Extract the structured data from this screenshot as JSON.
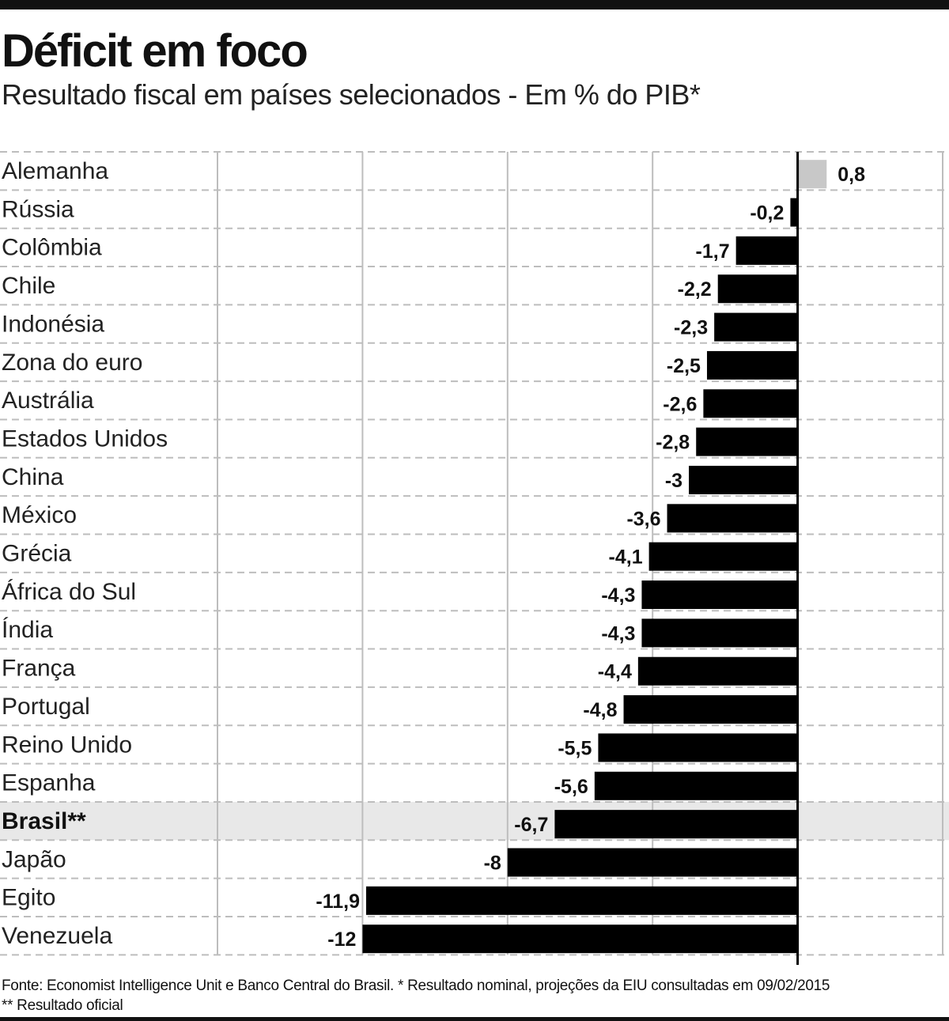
{
  "header": {
    "title": "Déficit em foco",
    "subtitle": "Resultado fiscal em países selecionados - Em % do PIB*"
  },
  "footer": {
    "source_line1": "Fonte: Economist Intelligence Unit e Banco Central do Brasil. * Resultado nominal, projeções da EIU consultadas em 09/02/2015",
    "source_line2": "** Resultado oficial"
  },
  "colors": {
    "negative_bar": "#000000",
    "positive_bar": "#c8c8c8",
    "highlight_row": "#e8e8e8",
    "grid": "#bdbdbd"
  },
  "chart_data": {
    "type": "bar",
    "orientation": "horizontal",
    "categories": [
      "Alemanha",
      "Rússia",
      "Colômbia",
      "Chile",
      "Indonésia",
      "Zona do euro",
      "Austrália",
      "Estados Unidos",
      "China",
      "México",
      "Grécia",
      "África do Sul",
      "Índia",
      "França",
      "Portugal",
      "Reino Unido",
      "Espanha",
      "Brasil**",
      "Japão",
      "Egito",
      "Venezuela"
    ],
    "values": [
      0.8,
      -0.2,
      -1.7,
      -2.2,
      -2.3,
      -2.5,
      -2.6,
      -2.8,
      -3,
      -3.6,
      -4.1,
      -4.3,
      -4.3,
      -4.4,
      -4.8,
      -5.5,
      -5.6,
      -6.7,
      -8,
      -11.9,
      -12
    ],
    "value_labels": [
      "0,8",
      "-0,2",
      "-1,7",
      "-2,2",
      "-2,3",
      "-2,5",
      "-2,6",
      "-2,8",
      "-3",
      "-3,6",
      "-4,1",
      "-4,3",
      "-4,3",
      "-4,4",
      "-4,8",
      "-5,5",
      "-5,6",
      "-6,7",
      "-8",
      "-11,9",
      "-12"
    ],
    "highlight": "Brasil**",
    "xlim": [
      -16,
      4
    ],
    "gridlines_x": [
      -16,
      -12,
      -8,
      -4,
      0,
      4
    ],
    "grid": true,
    "legend": "none"
  }
}
